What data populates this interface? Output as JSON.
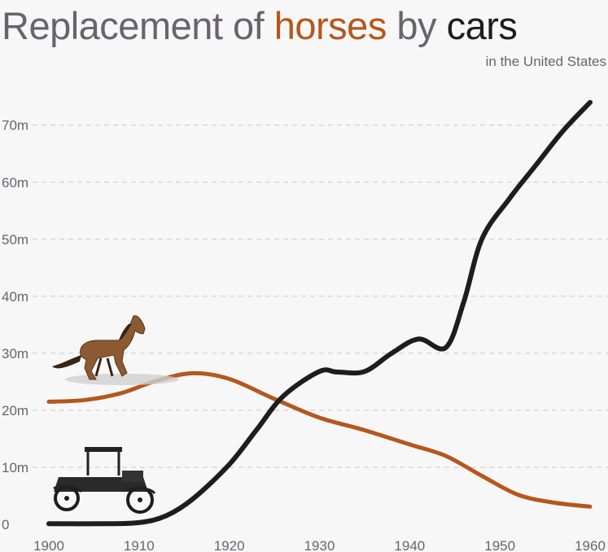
{
  "title": {
    "parts": [
      {
        "text": "Replacement of ",
        "color": "#67656a"
      },
      {
        "text": "horses",
        "color": "#b5571c"
      },
      {
        "text": " by ",
        "color": "#67656a"
      },
      {
        "text": "cars",
        "color": "#1d1d1d"
      }
    ]
  },
  "subtitle": "in the United States",
  "chart_data": {
    "type": "line",
    "title": "Replacement of horses by cars",
    "subtitle": "in the United States",
    "xlabel": "",
    "ylabel": "",
    "xlim": [
      1900,
      1960
    ],
    "ylim": [
      0,
      75
    ],
    "xticks": [
      1900,
      1910,
      1920,
      1930,
      1940,
      1950,
      1960
    ],
    "yticks": [
      0,
      10,
      20,
      30,
      40,
      50,
      60,
      70
    ],
    "ytick_labels": [
      "0",
      "10m",
      "20m",
      "30m",
      "40m",
      "50m",
      "60m",
      "70m"
    ],
    "grid": true,
    "series": [
      {
        "name": "horses",
        "color": "#b5571c",
        "icon": "horse-icon",
        "x": [
          1900,
          1904,
          1908,
          1912,
          1916,
          1920,
          1925,
          1930,
          1935,
          1940,
          1944,
          1948,
          1952,
          1956,
          1960
        ],
        "y": [
          21.5,
          21.8,
          23.0,
          25.2,
          26.5,
          25.5,
          22.0,
          18.7,
          16.5,
          14.0,
          12.0,
          8.5,
          5.2,
          3.8,
          3.1
        ]
      },
      {
        "name": "cars",
        "color": "#1d1d1d",
        "icon": "car-icon",
        "x": [
          1900,
          1906,
          1910,
          1913,
          1916,
          1920,
          1923,
          1926,
          1930,
          1932,
          1935,
          1938,
          1941,
          1944,
          1946,
          1948,
          1951,
          1954,
          1957,
          1960
        ],
        "y": [
          0.1,
          0.1,
          0.3,
          1.5,
          4.5,
          10.5,
          16.5,
          22.5,
          26.8,
          26.7,
          26.8,
          30.0,
          32.5,
          31.0,
          39.0,
          50.0,
          57.0,
          63.0,
          69.0,
          74.0
        ]
      }
    ]
  }
}
